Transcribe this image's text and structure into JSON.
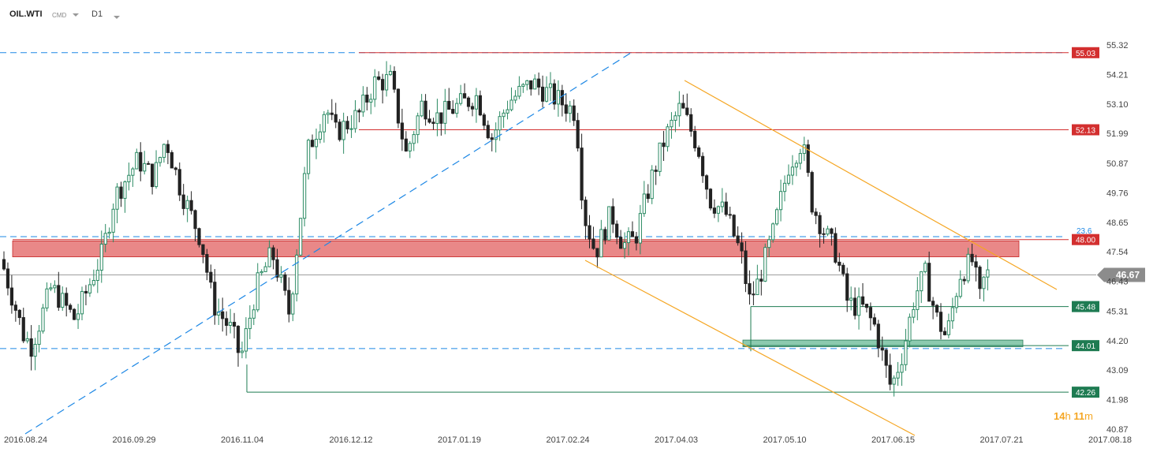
{
  "header": {
    "symbol": "OIL.WTI",
    "instrument_type": "CMD",
    "timeframe": "D1"
  },
  "countdown": {
    "hours": "14",
    "h_unit": "h",
    "minutes": "11",
    "m_unit": "m"
  },
  "colors": {
    "bull": "#2b8a63",
    "bear": "#222222",
    "resistance_zone": "#e57373",
    "support_zone": "#66b894",
    "red_level": "#d32f2f",
    "green_level": "#1e7b52",
    "trend": "#f5a623",
    "blue_dash": "#1e88e5",
    "current": "#8c8c8c"
  },
  "chart_data": {
    "type": "candlestick",
    "y_ticks": [
      "55.32",
      "54.21",
      "53.10",
      "51.99",
      "50.87",
      "49.76",
      "48.65",
      "47.54",
      "46.43",
      "45.31",
      "44.20",
      "43.09",
      "41.98",
      "40.87"
    ],
    "x_ticks": [
      "2016.08.24",
      "2016.09.29",
      "2016.11.04",
      "2016.12.12",
      "2017.01.19",
      "2017.02.24",
      "2017.04.03",
      "2017.05.10",
      "2017.06.15",
      "2017.07.21",
      "2017.08.18"
    ],
    "ylim": [
      40.87,
      55.32
    ],
    "current_price": "46.67",
    "levels": [
      {
        "label": "55.03",
        "value": 55.03,
        "color": "red"
      },
      {
        "label": "52.13",
        "value": 52.13,
        "color": "red"
      },
      {
        "label": "48.00",
        "value": 48.0,
        "color": "red"
      },
      {
        "label": "45.48",
        "value": 45.48,
        "color": "green"
      },
      {
        "label": "44.01",
        "value": 44.01,
        "color": "green"
      },
      {
        "label": "42.26",
        "value": 42.26,
        "color": "green"
      }
    ],
    "fib_label": "23.6",
    "zones": [
      {
        "name": "resistance",
        "from": 47.35,
        "to": 47.95
      },
      {
        "name": "support",
        "from": 43.97,
        "to": 44.22
      }
    ]
  }
}
